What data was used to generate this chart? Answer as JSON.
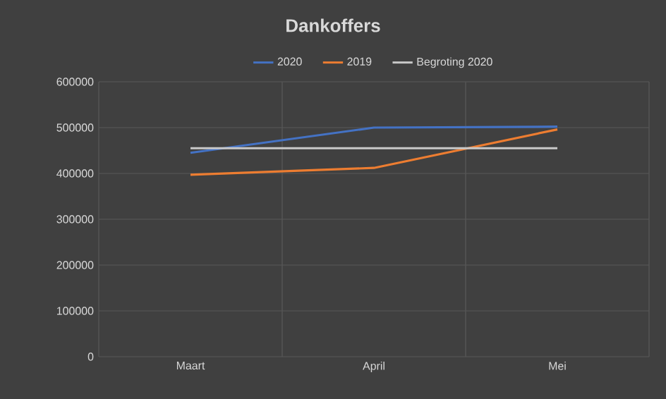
{
  "chart_data": {
    "type": "line",
    "title": "Dankoffers",
    "categories": [
      "Maart",
      "April",
      "Mei"
    ],
    "series": [
      {
        "name": "2020",
        "color": "#4472c4",
        "values": [
          445000,
          500000,
          502000
        ]
      },
      {
        "name": "2019",
        "color": "#ed7d31",
        "values": [
          397000,
          412000,
          496000
        ]
      },
      {
        "name": "Begroting 2020",
        "color": "#c9c9c9",
        "values": [
          455000,
          455000,
          455000
        ]
      }
    ],
    "ylim": [
      0,
      600000
    ],
    "yticks": [
      0,
      100000,
      200000,
      300000,
      400000,
      500000,
      600000
    ],
    "grid": true,
    "legend": "top",
    "marker": "none",
    "line_style": "solid"
  }
}
